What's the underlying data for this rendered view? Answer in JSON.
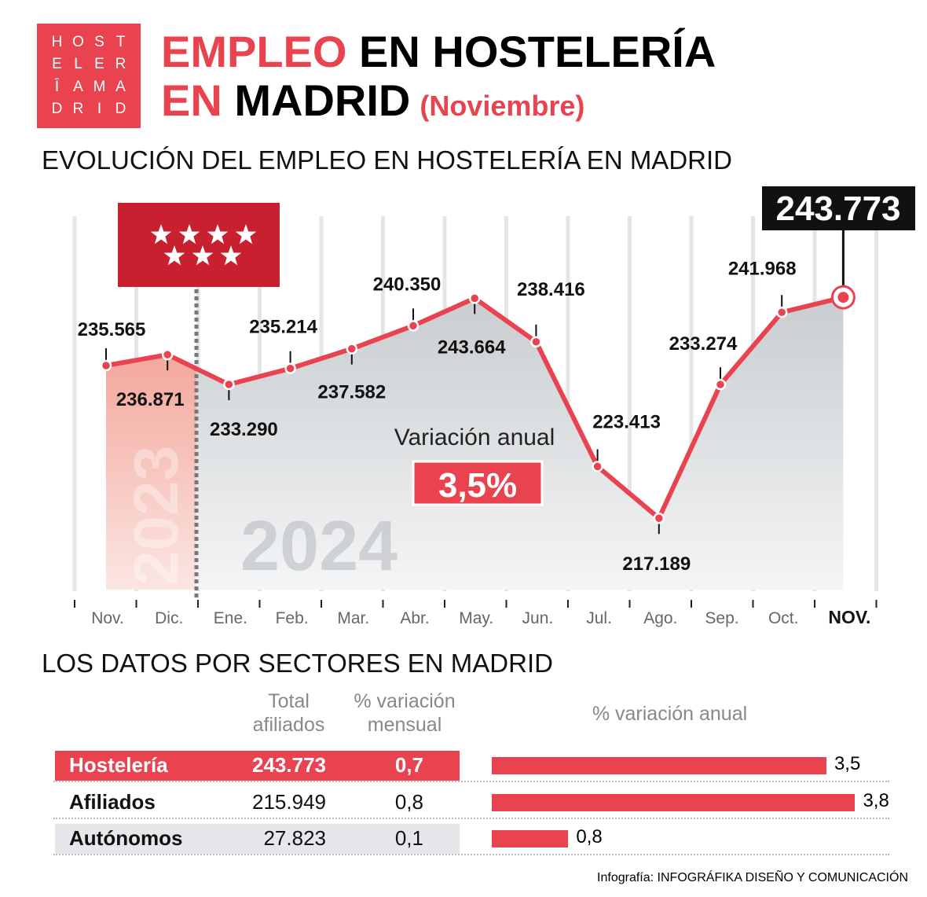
{
  "logo": {
    "letters": [
      "H",
      "O",
      "S",
      "T",
      "E",
      "L",
      "E",
      "R",
      "Ī",
      "A",
      "M",
      "A",
      "D",
      "R",
      "I",
      "D"
    ]
  },
  "header": {
    "title_red_1": "EMPLEO",
    "title_black_1": " EN HOSTELERÍA",
    "title_red_2": "EN",
    "title_black_2": " MADRID",
    "subtitle": "(Noviembre)"
  },
  "section1_title": "EVOLUCIÓN DEL EMPLEO EN HOSTELERÍA EN MADRID",
  "chart_data": {
    "type": "line",
    "categories": [
      "Nov.",
      "Dic.",
      "Ene.",
      "Feb.",
      "Mar.",
      "Abr.",
      "May.",
      "Jun.",
      "Jul.",
      "Ago.",
      "Sep.",
      "Oct.",
      "NOV."
    ],
    "values": [
      235565,
      236871,
      233290,
      235214,
      237582,
      240350,
      243664,
      238416,
      223413,
      217189,
      233274,
      241968,
      243773
    ],
    "labels": [
      "235.565",
      "236.871",
      "233.290",
      "235.214",
      "237.582",
      "240.350",
      "243.664",
      "238.416",
      "223.413",
      "217.189",
      "233.274",
      "241.968",
      "243.773"
    ],
    "label_position": [
      "above",
      "below",
      "below",
      "above",
      "below",
      "above",
      "below",
      "above",
      "above",
      "below",
      "above",
      "above",
      "highlight"
    ],
    "year_labels": [
      "2023",
      "2024"
    ],
    "ylim": [
      208600,
      255900
    ],
    "grid": "vertical",
    "colors": {
      "line": "#e8434f",
      "area": "#c9cdd0",
      "area_2023": "#f3a79c",
      "highlight_box": "#111111"
    },
    "annotation": {
      "label": "Variación anual",
      "value": "3,5%"
    },
    "flag": "comunidad-de-madrid-flag"
  },
  "section2_title": "LOS DATOS POR SECTORES EN MADRID",
  "table": {
    "headers": {
      "total": "Total\nafiliados",
      "mensual": "% variación\nmensual",
      "anual": "% variación anual"
    },
    "rows": [
      {
        "name": "Hostelería",
        "total": "243.773",
        "mensual": "0,7",
        "anual": 3.5,
        "anual_label": "3,5"
      },
      {
        "name": "Afiliados",
        "total": "215.949",
        "mensual": "0,8",
        "anual": 3.8,
        "anual_label": "3,8"
      },
      {
        "name": "Autónomos",
        "total": "27.823",
        "mensual": "0,1",
        "anual": 0.8,
        "anual_label": "0,8"
      }
    ]
  },
  "credit": {
    "prefix": "Infografía: ",
    "name": "INFOGRÁFIKA DISEÑO Y COMUNICACIÓN"
  }
}
